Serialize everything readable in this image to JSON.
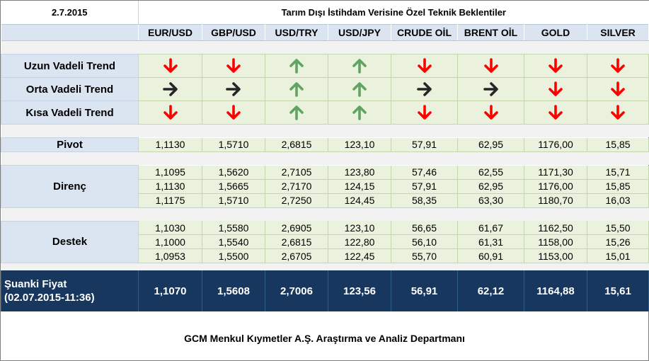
{
  "header": {
    "date": "2.7.2015",
    "title": "Tarım Dışı İstihdam Verisine Özel Teknik Beklentiler"
  },
  "columns": [
    "EUR/USD",
    "GBP/USD",
    "USD/TRY",
    "USD/JPY",
    "CRUDE OİL",
    "BRENT OİL",
    "GOLD",
    "SILVER"
  ],
  "trends": [
    {
      "label": "Uzun Vadeli Trend",
      "dirs": [
        "down",
        "down",
        "up",
        "up",
        "down",
        "down",
        "down",
        "down"
      ]
    },
    {
      "label": "Orta Vadeli Trend",
      "dirs": [
        "right",
        "right",
        "up",
        "up",
        "right",
        "right",
        "down",
        "down"
      ]
    },
    {
      "label": "Kısa Vadeli Trend",
      "dirs": [
        "down",
        "down",
        "up",
        "up",
        "down",
        "down",
        "down",
        "down"
      ]
    }
  ],
  "arrow_colors": {
    "down": "#ff0000",
    "up": "#5fa463",
    "right": "#262626"
  },
  "pivot": {
    "label": "Pivot",
    "values": [
      "1,1130",
      "1,5710",
      "2,6815",
      "123,10",
      "57,91",
      "62,95",
      "1176,00",
      "15,85"
    ]
  },
  "resistance": {
    "label": "Direnç",
    "rows": [
      [
        "1,1095",
        "1,5620",
        "2,7105",
        "123,80",
        "57,46",
        "62,55",
        "1171,30",
        "15,71"
      ],
      [
        "1,1130",
        "1,5665",
        "2,7170",
        "124,15",
        "57,91",
        "62,95",
        "1176,00",
        "15,85"
      ],
      [
        "1,1175",
        "1,5710",
        "2,7250",
        "124,45",
        "58,35",
        "63,30",
        "1180,70",
        "16,03"
      ]
    ]
  },
  "support": {
    "label": "Destek",
    "rows": [
      [
        "1,1030",
        "1,5580",
        "2,6905",
        "123,10",
        "56,65",
        "61,67",
        "1162,50",
        "15,50"
      ],
      [
        "1,1000",
        "1,5540",
        "2,6815",
        "122,80",
        "56,10",
        "61,31",
        "1158,00",
        "15,26"
      ],
      [
        "1,0953",
        "1,5500",
        "2,6705",
        "122,45",
        "55,70",
        "60,91",
        "1153,00",
        "15,01"
      ]
    ]
  },
  "current": {
    "label_line1": "Şuanki Fiyat",
    "label_line2": "(02.07.2015-11:36)",
    "values": [
      "1,1070",
      "1,5608",
      "2,7006",
      "123,56",
      "56,91",
      "62,12",
      "1164,88",
      "15,61"
    ]
  },
  "footer": "GCM Menkul Kıymetler A.Ş. Araştırma ve Analiz Departmanı"
}
